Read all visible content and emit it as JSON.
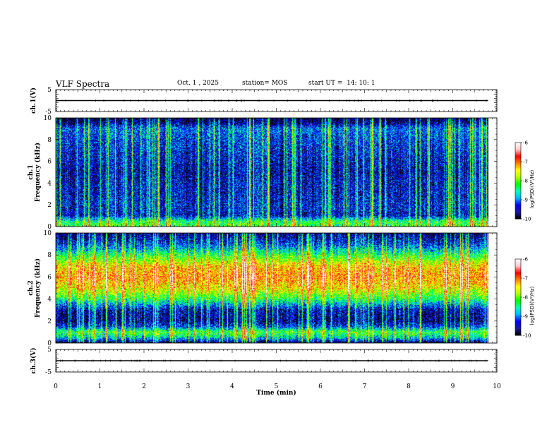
{
  "header": {
    "title": "VLF Spectra",
    "date": "Oct. 1 , 2025",
    "station": "station= MOS",
    "start": "start UT =  14: 10: 1"
  },
  "colors": {
    "colormap": [
      "#000000",
      "#1a1a99",
      "#0000ff",
      "#00b4ff",
      "#00ffb4",
      "#00ff00",
      "#b4ff00",
      "#ffff00",
      "#ff8000",
      "#ff0000",
      "#ffc8c8",
      "#ffffff"
    ]
  },
  "chart_data": [
    {
      "type": "line",
      "name": "ch1-voltage",
      "title": "VLF Spectra",
      "ylabel": "ch.1(V)",
      "xlim": [
        0,
        10
      ],
      "ylim": [
        -5,
        5
      ],
      "yticks": [
        5,
        -5
      ],
      "x": [
        0,
        9.8
      ],
      "y": [
        0,
        0
      ]
    },
    {
      "type": "heatmap",
      "name": "ch1-spectrogram",
      "ylabel_line1": "ch.1",
      "ylabel_line2": "Frequency (kHz)",
      "xlim": [
        0,
        10
      ],
      "ylim": [
        0,
        10
      ],
      "yticks": [
        0,
        2,
        4,
        6,
        8,
        10
      ],
      "data_x_end": 9.8,
      "power_profile_khz": [
        0,
        0.5,
        1,
        2,
        3,
        4,
        5,
        6,
        7,
        8,
        9,
        9.5,
        10
      ],
      "power_profile_log": [
        -8.0,
        -8.2,
        -9.4,
        -9.3,
        -9.4,
        -9.4,
        -9.5,
        -9.4,
        -9.3,
        -9.2,
        -9.0,
        -9.6,
        -9.9
      ],
      "colorbar": {
        "label": "log(PSD)(V²/Hz)",
        "range": [
          -10,
          -6
        ],
        "ticks": [
          -6,
          -7,
          -8,
          -9,
          -10
        ]
      }
    },
    {
      "type": "heatmap",
      "name": "ch2-spectrogram",
      "ylabel_line1": "ch.2",
      "ylabel_line2": "Frequency (kHz)",
      "xlim": [
        0,
        10
      ],
      "ylim": [
        0,
        10
      ],
      "yticks": [
        0,
        2,
        4,
        6,
        8,
        10
      ],
      "data_x_end": 9.8,
      "power_profile_khz": [
        0,
        0.5,
        1,
        1.5,
        2,
        3,
        4,
        5,
        6,
        7,
        8,
        9,
        10
      ],
      "power_profile_log": [
        -9.9,
        -8.6,
        -8.0,
        -9.2,
        -9.6,
        -9.5,
        -8.2,
        -7.3,
        -6.9,
        -7.2,
        -8.2,
        -9.2,
        -9.7
      ],
      "colorbar": {
        "label": "log(PSD)(V²/Hz)",
        "range": [
          -10,
          -6
        ],
        "ticks": [
          -6,
          -7,
          -8,
          -9,
          -10
        ]
      }
    },
    {
      "type": "line",
      "name": "ch3-voltage",
      "ylabel": "ch.3(V)",
      "xlabel": "Time (min)",
      "xlim": [
        0,
        10
      ],
      "xticks": [
        0,
        1,
        2,
        3,
        4,
        5,
        6,
        7,
        8,
        9,
        10
      ],
      "ylim": [
        -5,
        5
      ],
      "yticks": [
        5,
        -5
      ],
      "x": [
        0,
        9.8
      ],
      "y": [
        0,
        0
      ]
    }
  ]
}
